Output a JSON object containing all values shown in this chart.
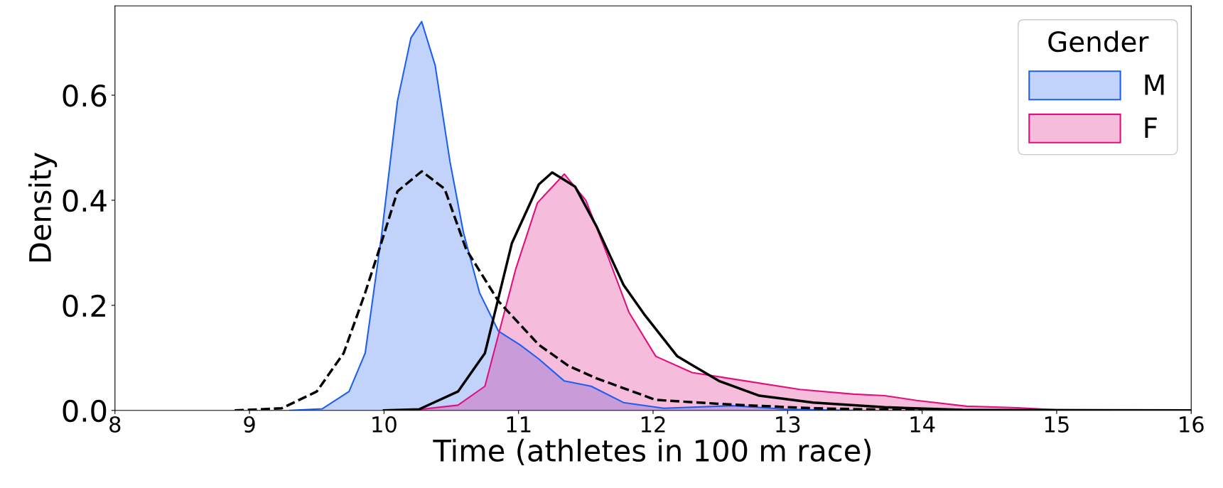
{
  "chart_data": {
    "type": "area",
    "xlabel": "Time (athletes in 100 m race)",
    "ylabel": "Density",
    "legend_title": "Gender",
    "legend": "top right",
    "xlim": [
      8,
      16
    ],
    "xticks": [
      8,
      9,
      10,
      11,
      12,
      13,
      14,
      15,
      16
    ],
    "ylim": [
      0,
      0.77
    ],
    "yticks": [
      {
        "value": 0,
        "label": "0.0"
      },
      {
        "value": 0.2,
        "label": "0.2"
      },
      {
        "value": 0.4,
        "label": "0.4"
      },
      {
        "value": 0.6,
        "label": "0.6"
      }
    ],
    "grid": false,
    "series": [
      {
        "name": "M",
        "color": "#1f5fef",
        "x": [
          9.3,
          9.54,
          9.74,
          9.86,
          9.98,
          10.1,
          10.2,
          10.28,
          10.38,
          10.49,
          10.59,
          10.71,
          10.85,
          11.01,
          11.15,
          11.34,
          11.54,
          11.78,
          12.08,
          12.59,
          13.0,
          13.5
        ],
        "values": [
          0,
          0.003,
          0.036,
          0.109,
          0.33,
          0.589,
          0.709,
          0.74,
          0.657,
          0.474,
          0.339,
          0.224,
          0.151,
          0.125,
          0.098,
          0.056,
          0.046,
          0.015,
          0.004,
          0.009,
          0.002,
          0
        ]
      },
      {
        "name": "F",
        "color": "#e0107f",
        "x": [
          10.2,
          10.55,
          10.75,
          10.98,
          11.14,
          11.34,
          11.5,
          11.66,
          11.82,
          12.02,
          12.29,
          12.69,
          13.09,
          13.49,
          13.72,
          13.96,
          14.33,
          14.71,
          15.0,
          15.4
        ],
        "values": [
          0,
          0.01,
          0.046,
          0.27,
          0.395,
          0.45,
          0.4,
          0.296,
          0.187,
          0.103,
          0.072,
          0.056,
          0.04,
          0.031,
          0.028,
          0.019,
          0.008,
          0.005,
          0.001,
          0
        ]
      },
      {
        "type": "line",
        "line_style": "solid",
        "color": "#000000",
        "x": [
          10.0,
          10.26,
          10.55,
          10.75,
          10.95,
          11.15,
          11.25,
          11.42,
          11.58,
          11.78,
          11.94,
          12.18,
          12.49,
          12.79,
          13.19,
          13.72,
          14.3,
          16.0
        ],
        "values": [
          0,
          0.002,
          0.036,
          0.109,
          0.318,
          0.43,
          0.453,
          0.426,
          0.35,
          0.239,
          0.181,
          0.103,
          0.056,
          0.028,
          0.015,
          0.006,
          0.001,
          0
        ]
      },
      {
        "type": "line",
        "line_style": "dashed",
        "color": "#000000",
        "x": [
          8.89,
          9.24,
          9.5,
          9.7,
          9.86,
          9.98,
          10.1,
          10.28,
          10.45,
          10.61,
          10.85,
          11.15,
          11.37,
          11.58,
          12.02,
          12.59,
          13.19,
          14.0
        ],
        "values": [
          0,
          0.004,
          0.036,
          0.109,
          0.224,
          0.319,
          0.417,
          0.455,
          0.422,
          0.307,
          0.208,
          0.125,
          0.085,
          0.061,
          0.02,
          0.011,
          0.004,
          0
        ]
      }
    ]
  }
}
